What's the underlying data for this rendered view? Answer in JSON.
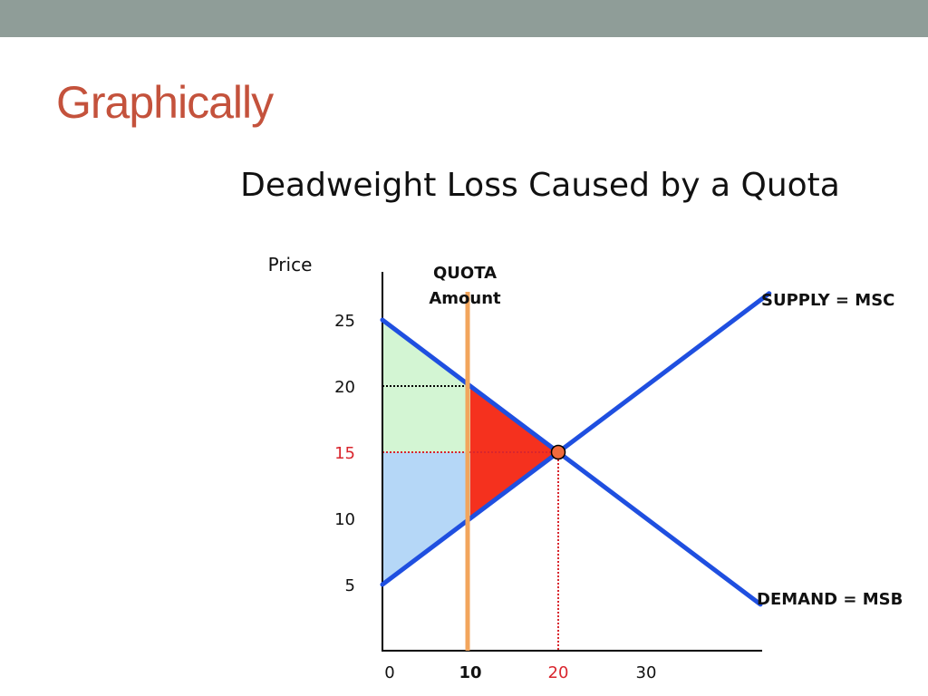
{
  "slide": {
    "title": "Graphically",
    "colors": {
      "top_bar": "#8f9d98",
      "title": "#c4523c"
    }
  },
  "chart_data": {
    "type": "line",
    "title": "Deadweight Loss Caused by a Quota",
    "ylabel": "Price",
    "xlabel": "",
    "x_ticks": [
      {
        "value": 0,
        "label": "0",
        "style": "normal"
      },
      {
        "value": 10,
        "label": "10",
        "style": "bold"
      },
      {
        "value": 20,
        "label": "20",
        "style": "highlight"
      },
      {
        "value": 30,
        "label": "30",
        "style": "normal"
      }
    ],
    "y_ticks": [
      {
        "value": 25,
        "label": "25",
        "style": "normal"
      },
      {
        "value": 20,
        "label": "20",
        "style": "normal"
      },
      {
        "value": 15,
        "label": "15",
        "style": "highlight"
      },
      {
        "value": 10,
        "label": "10",
        "style": "normal"
      },
      {
        "value": 5,
        "label": "5",
        "style": "normal"
      }
    ],
    "series": [
      {
        "name": "SUPPLY = MSC",
        "points": [
          [
            0,
            5
          ],
          [
            44,
            27
          ]
        ],
        "color": "#1f4fe0"
      },
      {
        "name": "DEMAND = MSB",
        "points": [
          [
            0,
            25
          ],
          [
            43,
            3.5
          ]
        ],
        "color": "#1f4fe0"
      }
    ],
    "quota": {
      "label_line1": "QUOTA",
      "label_line2": "Amount",
      "x": 10,
      "color": "#f2a55c"
    },
    "equilibrium": {
      "x": 20,
      "y": 15,
      "color": "#f06a3c"
    },
    "reference_lines": [
      {
        "from": [
          0,
          20
        ],
        "to": [
          10,
          20
        ],
        "color": "#000000"
      },
      {
        "from": [
          0,
          15
        ],
        "to": [
          20,
          15
        ],
        "color": "#d9262e"
      },
      {
        "from": [
          20,
          15
        ],
        "to": [
          20,
          0
        ],
        "color": "#d9262e"
      }
    ],
    "regions": [
      {
        "name": "consumer surplus",
        "polygon": [
          [
            0,
            25
          ],
          [
            10,
            20
          ],
          [
            0,
            20
          ]
        ],
        "color": "#d3f5d3"
      },
      {
        "name": "consumer surplus",
        "polygon": [
          [
            0,
            20
          ],
          [
            10,
            20
          ],
          [
            10,
            15
          ],
          [
            0,
            15
          ]
        ],
        "color": "#d3f5d3"
      },
      {
        "name": "producer surplus",
        "polygon": [
          [
            0,
            15
          ],
          [
            10,
            15
          ],
          [
            10,
            10
          ],
          [
            0,
            5
          ]
        ],
        "color": "#b5d7f7"
      },
      {
        "name": "deadweight loss",
        "polygon": [
          [
            10,
            20
          ],
          [
            20,
            15
          ],
          [
            10,
            10
          ]
        ],
        "color": "#f5311e"
      }
    ],
    "highlight_color": "#d9262e",
    "xlim": [
      0,
      45
    ],
    "ylim": [
      0,
      28
    ],
    "grid": false,
    "legend": "none"
  }
}
